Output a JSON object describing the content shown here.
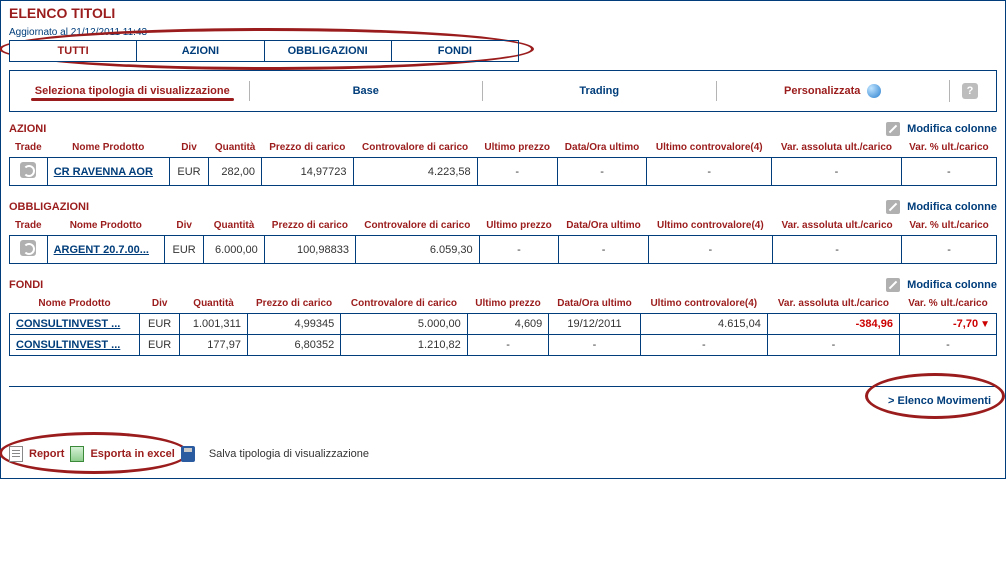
{
  "page_title": "ELENCO TITOLI",
  "timestamp": "Aggiornato al 21/12/2011 11:43",
  "tabs": [
    "TUTTI",
    "AZIONI",
    "OBBLIGAZIONI",
    "FONDI"
  ],
  "active_tab": 0,
  "viewbar": {
    "select_label": "Seleziona tipologia di visualizzazione",
    "base": "Base",
    "trading": "Trading",
    "custom": "Personalizzata",
    "help": "?"
  },
  "modify_columns": "Modifica colonne",
  "columns_full": [
    "Trade",
    "Nome Prodotto",
    "Div",
    "Quantità",
    "Prezzo di carico",
    "Controvalore di carico",
    "Ultimo prezzo",
    "Data/Ora ultimo",
    "Ultimo controvalore(4)",
    "Var. assoluta ult./carico",
    "Var. % ult./carico"
  ],
  "columns_fondi": [
    "Nome Prodotto",
    "Div",
    "Quantità",
    "Prezzo di carico",
    "Controvalore di carico",
    "Ultimo prezzo",
    "Data/Ora ultimo",
    "Ultimo controvalore(4)",
    "Var. assoluta ult./carico",
    "Var. % ult./carico"
  ],
  "sections": {
    "azioni": {
      "title": "AZIONI",
      "rows": [
        {
          "trade": true,
          "nome": "CR RAVENNA AOR",
          "div": "EUR",
          "qta": "282,00",
          "pcarico": "14,97723",
          "cvcarico": "4.223,58",
          "uprezzo": "-",
          "dataora": "-",
          "ucv": "-",
          "vabs": "-",
          "vpct": "-"
        }
      ]
    },
    "obbligazioni": {
      "title": "OBBLIGAZIONI",
      "rows": [
        {
          "trade": true,
          "nome": "ARGENT 20.7.00...",
          "div": "EUR",
          "qta": "6.000,00",
          "pcarico": "100,98833",
          "cvcarico": "6.059,30",
          "uprezzo": "-",
          "dataora": "-",
          "ucv": "-",
          "vabs": "-",
          "vpct": "-"
        }
      ]
    },
    "fondi": {
      "title": "FONDI",
      "rows": [
        {
          "nome": "CONSULTINVEST ...",
          "div": "EUR",
          "qta": "1.001,311",
          "pcarico": "4,99345",
          "cvcarico": "5.000,00",
          "uprezzo": "4,609",
          "dataora": "19/12/2011",
          "ucv": "4.615,04",
          "vabs": "-384,96",
          "vpct": "-7,70",
          "neg": true
        },
        {
          "nome": "CONSULTINVEST ...",
          "div": "EUR",
          "qta": "177,97",
          "pcarico": "6,80352",
          "cvcarico": "1.210,82",
          "uprezzo": "-",
          "dataora": "-",
          "ucv": "-",
          "vabs": "-",
          "vpct": "-"
        }
      ]
    }
  },
  "footer": {
    "elenco_movimenti": "> Elenco Movimenti",
    "report": "Report",
    "export_excel": "Esporta in excel",
    "save_view": "Salva tipologia di visualizzazione"
  },
  "colors": {
    "brand_red": "#9b1c1c",
    "brand_blue": "#003d7a",
    "neg": "#cc0000"
  }
}
